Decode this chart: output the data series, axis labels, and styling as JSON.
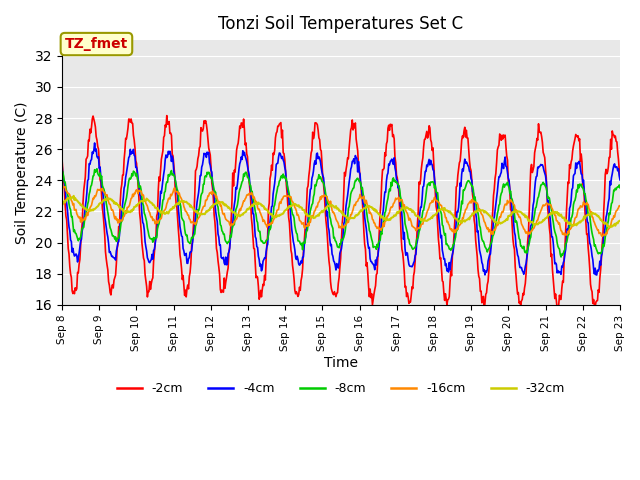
{
  "title": "Tonzi Soil Temperatures Set C",
  "xlabel": "Time",
  "ylabel": "Soil Temperature (C)",
  "annotation_text": "TZ_fmet",
  "annotation_color": "#cc0000",
  "annotation_bg": "#ffffcc",
  "annotation_border": "#999900",
  "ylim": [
    16,
    33
  ],
  "yticks": [
    16,
    18,
    20,
    22,
    24,
    26,
    28,
    30,
    32
  ],
  "line_colors": {
    "-2cm": "#ff0000",
    "-4cm": "#0000ff",
    "-8cm": "#00cc00",
    "-16cm": "#ff8800",
    "-32cm": "#cccc00"
  },
  "line_widths": {
    "-2cm": 1.2,
    "-4cm": 1.2,
    "-8cm": 1.2,
    "-16cm": 1.2,
    "-32cm": 1.5
  },
  "legend_labels": [
    "-2cm",
    "-4cm",
    "-8cm",
    "-16cm",
    "-32cm"
  ],
  "bg_color": "#e8e8e8",
  "fig_bg": "#ffffff",
  "xtick_labels": [
    "Sep 8",
    "Sep 9",
    "Sep 10",
    "Sep 11",
    "Sep 12",
    "Sep 13",
    "Sep 14",
    "Sep 15",
    "Sep 16",
    "Sep 17",
    "Sep 18",
    "Sep 19",
    "Sep 20",
    "Sep 21",
    "Sep 22",
    "Sep 23"
  ],
  "n_days": 15,
  "start_day": 8
}
